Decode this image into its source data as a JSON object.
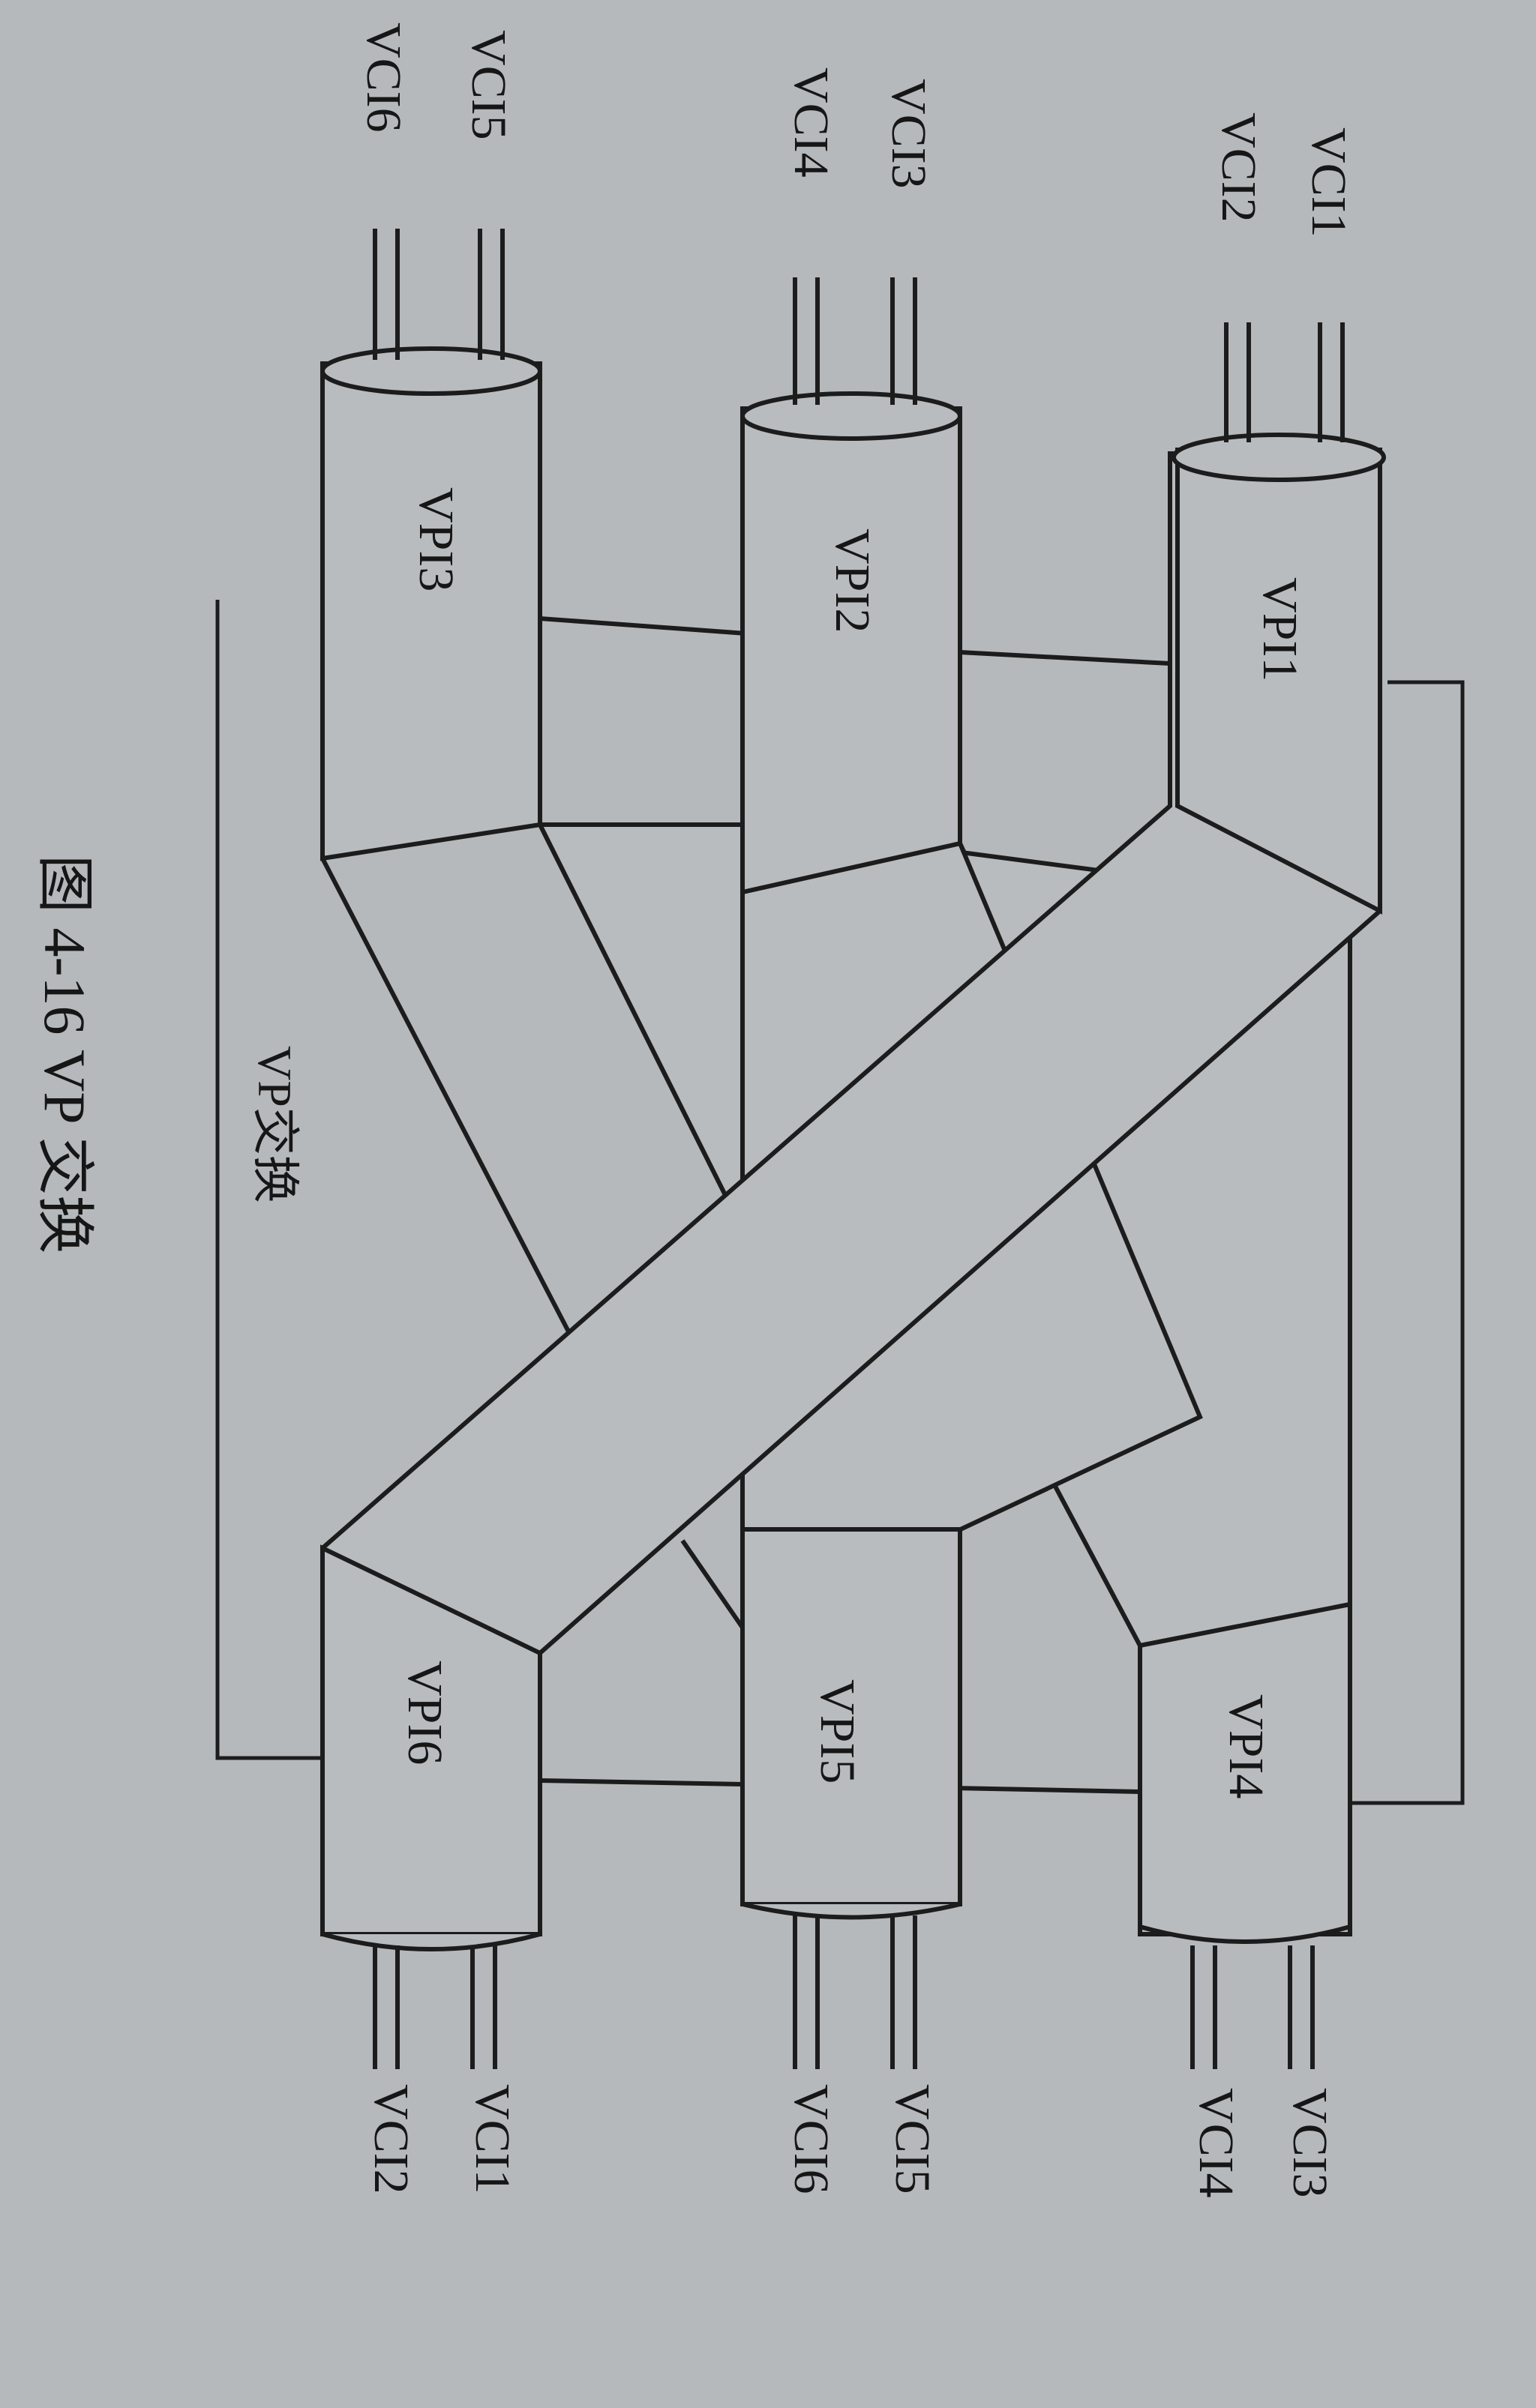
{
  "diagram": {
    "switch_label": "VP交换",
    "caption": "图 4-16   VP 交换",
    "input_paths": [
      {
        "name": "VPI1",
        "channels": [
          "VCI1",
          "VCI2"
        ]
      },
      {
        "name": "VPI2",
        "channels": [
          "VCI3",
          "VCI4"
        ]
      },
      {
        "name": "VPI3",
        "channels": [
          "VCI5",
          "VCI6"
        ]
      }
    ],
    "output_paths": [
      {
        "name": "VPI4",
        "channels": [
          "VCI3",
          "VCI4"
        ]
      },
      {
        "name": "VPI5",
        "channels": [
          "VCI5",
          "VCI6"
        ]
      },
      {
        "name": "VPI6",
        "channels": [
          "VCI1",
          "VCI2"
        ]
      }
    ]
  }
}
